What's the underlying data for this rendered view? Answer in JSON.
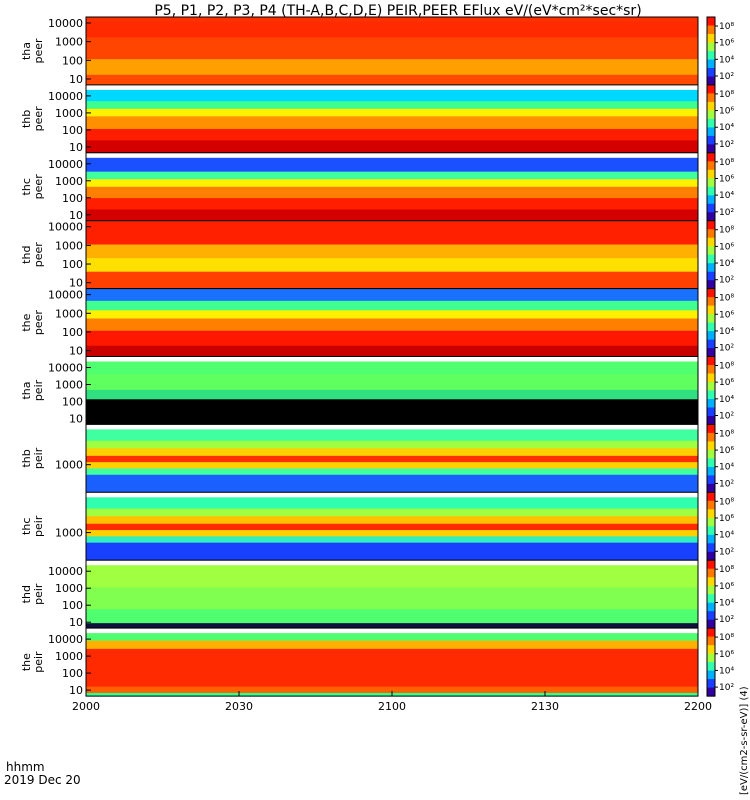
{
  "chart_data": {
    "type": "heatmap",
    "title": "P5, P1, P2, P3, P4 (TH-A,B,C,D,E) PEIR,PEER EFlux eV/(eV*cm²*sec*sr)",
    "x_ticks": [
      "2000",
      "2030",
      "2100",
      "2130",
      "2200"
    ],
    "x_label_line1": "hhmm",
    "x_label_line2": "2019 Dec 20",
    "colorbar_ticks": [
      "10⁸",
      "10⁶",
      "10⁴",
      "10²"
    ],
    "colorbar_unit": "[eV/(cm2-s-sr-eV)] (4)",
    "panels": [
      {
        "name": "tha peer",
        "probe": "tha",
        "species": "peer",
        "y_ticks": [
          "10000",
          "1000",
          "100",
          "10"
        ],
        "top_gap": false,
        "bands": [
          {
            "y": [
              0.0,
              0.08
            ],
            "c": "#ff3000"
          },
          {
            "y": [
              0.08,
              0.3
            ],
            "c": "#ff2a00"
          },
          {
            "y": [
              0.3,
              0.62
            ],
            "c": "#ff4500"
          },
          {
            "y": [
              0.62,
              0.85
            ],
            "c": "#ffa000"
          },
          {
            "y": [
              0.85,
              1.0
            ],
            "c": "#ff4a00"
          }
        ]
      },
      {
        "name": "thb peer",
        "probe": "thb",
        "species": "peer",
        "y_ticks": [
          "10000",
          "1000",
          "100",
          "10"
        ],
        "top_gap": true,
        "bands": [
          {
            "y": [
              0.0,
              0.18
            ],
            "c": "#00d8ff"
          },
          {
            "y": [
              0.18,
              0.3
            ],
            "c": "#3cff90"
          },
          {
            "y": [
              0.3,
              0.42
            ],
            "c": "#fff000"
          },
          {
            "y": [
              0.42,
              0.62
            ],
            "c": "#ff9000"
          },
          {
            "y": [
              0.62,
              0.8
            ],
            "c": "#ff1e00"
          },
          {
            "y": [
              0.8,
              1.0
            ],
            "c": "#d40000"
          }
        ]
      },
      {
        "name": "thc peer",
        "probe": "thc",
        "species": "peer",
        "y_ticks": [
          "10000",
          "1000",
          "100",
          "10"
        ],
        "top_gap": true,
        "bands": [
          {
            "y": [
              0.0,
              0.22
            ],
            "c": "#1a50ff"
          },
          {
            "y": [
              0.22,
              0.34
            ],
            "c": "#40ffa0"
          },
          {
            "y": [
              0.34,
              0.46
            ],
            "c": "#fff000"
          },
          {
            "y": [
              0.46,
              0.64
            ],
            "c": "#ff8000"
          },
          {
            "y": [
              0.64,
              0.82
            ],
            "c": "#ff1e00"
          },
          {
            "y": [
              0.82,
              1.0
            ],
            "c": "#d40000"
          }
        ]
      },
      {
        "name": "thd peer",
        "probe": "thd",
        "species": "peer",
        "y_ticks": [
          "10000",
          "1000",
          "100",
          "10"
        ],
        "top_gap": false,
        "bands": [
          {
            "y": [
              0.0,
              0.35
            ],
            "c": "#ff2000"
          },
          {
            "y": [
              0.35,
              0.55
            ],
            "c": "#ffb000"
          },
          {
            "y": [
              0.55,
              0.75
            ],
            "c": "#ffe000"
          },
          {
            "y": [
              0.75,
              1.0
            ],
            "c": "#ff4000"
          }
        ]
      },
      {
        "name": "the peer",
        "probe": "the",
        "species": "peer",
        "y_ticks": [
          "10000",
          "1000",
          "100",
          "10"
        ],
        "top_gap": false,
        "bands": [
          {
            "y": [
              0.0,
              0.18
            ],
            "c": "#1a70ff"
          },
          {
            "y": [
              0.18,
              0.32
            ],
            "c": "#40ff90"
          },
          {
            "y": [
              0.32,
              0.44
            ],
            "c": "#fff000"
          },
          {
            "y": [
              0.44,
              0.62
            ],
            "c": "#ff8000"
          },
          {
            "y": [
              0.62,
              0.84
            ],
            "c": "#ff1800"
          },
          {
            "y": [
              0.84,
              1.0
            ],
            "c": "#c80000"
          }
        ]
      },
      {
        "name": "tha peir",
        "probe": "tha",
        "species": "peir",
        "y_ticks": [
          "10000",
          "1000",
          "100",
          "10"
        ],
        "top_gap": true,
        "bands": [
          {
            "y": [
              0.0,
              0.2
            ],
            "c": "#50ff70"
          },
          {
            "y": [
              0.2,
              0.45
            ],
            "c": "#60ff60"
          },
          {
            "y": [
              0.45,
              0.6
            ],
            "c": "#30e080"
          },
          {
            "y": [
              0.6,
              1.0
            ],
            "c": "#000000"
          }
        ]
      },
      {
        "name": "thb peir",
        "probe": "thb",
        "species": "peir",
        "y_ticks": [
          "1000"
        ],
        "top_gap": true,
        "bands": [
          {
            "y": [
              0.0,
              0.18
            ],
            "c": "#40ffa0"
          },
          {
            "y": [
              0.18,
              0.3
            ],
            "c": "#a0ff40"
          },
          {
            "y": [
              0.3,
              0.42
            ],
            "c": "#ffd000"
          },
          {
            "y": [
              0.42,
              0.52
            ],
            "c": "#ff3000"
          },
          {
            "y": [
              0.52,
              0.62
            ],
            "c": "#ffd000"
          },
          {
            "y": [
              0.62,
              0.72
            ],
            "c": "#40ffa0"
          },
          {
            "y": [
              0.72,
              1.0
            ],
            "c": "#1a60ff"
          }
        ]
      },
      {
        "name": "thc peir",
        "probe": "thc",
        "species": "peir",
        "y_ticks": [
          "1000"
        ],
        "top_gap": true,
        "bands": [
          {
            "y": [
              0.0,
              0.18
            ],
            "c": "#30ffb0"
          },
          {
            "y": [
              0.18,
              0.3
            ],
            "c": "#a0ff40"
          },
          {
            "y": [
              0.3,
              0.42
            ],
            "c": "#ffc000"
          },
          {
            "y": [
              0.42,
              0.52
            ],
            "c": "#ff2a00"
          },
          {
            "y": [
              0.52,
              0.62
            ],
            "c": "#ffd000"
          },
          {
            "y": [
              0.62,
              0.72
            ],
            "c": "#30f0c0"
          },
          {
            "y": [
              0.72,
              1.0
            ],
            "c": "#1a40ff"
          }
        ]
      },
      {
        "name": "thd peir",
        "probe": "thd",
        "species": "peir",
        "y_ticks": [
          "10000",
          "1000",
          "100",
          "10"
        ],
        "top_gap": true,
        "bands": [
          {
            "y": [
              0.0,
              0.35
            ],
            "c": "#a0ff40"
          },
          {
            "y": [
              0.35,
              0.7
            ],
            "c": "#80ff50"
          },
          {
            "y": [
              0.7,
              0.92
            ],
            "c": "#50ff70"
          },
          {
            "y": [
              0.92,
              1.0
            ],
            "c": "#101040"
          }
        ]
      },
      {
        "name": "the peir",
        "probe": "the",
        "species": "peir",
        "y_ticks": [
          "10000",
          "1000",
          "100",
          "10"
        ],
        "top_gap": true,
        "bands": [
          {
            "y": [
              0.0,
              0.12
            ],
            "c": "#50ff70"
          },
          {
            "y": [
              0.12,
              0.25
            ],
            "c": "#ffb000"
          },
          {
            "y": [
              0.25,
              0.85
            ],
            "c": "#ff2a00"
          },
          {
            "y": [
              0.85,
              0.95
            ],
            "c": "#ff6000"
          },
          {
            "y": [
              0.95,
              1.0
            ],
            "c": "#30ff90"
          }
        ]
      }
    ]
  }
}
